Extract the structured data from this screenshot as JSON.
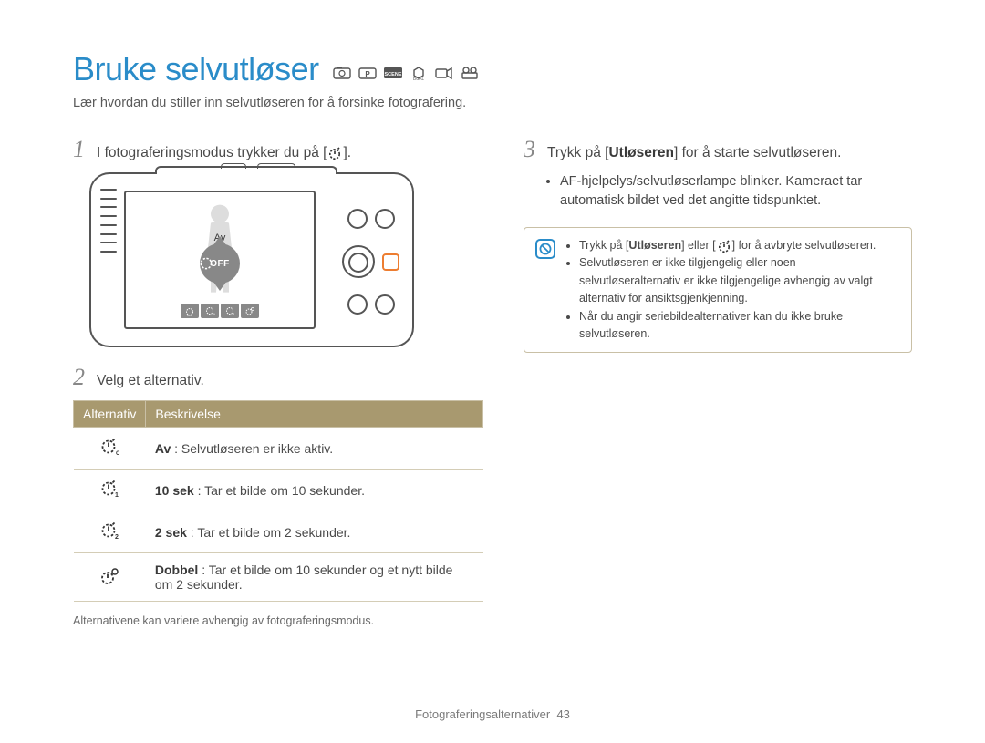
{
  "title": "Bruke selvutløser",
  "subtitle": "Lær hvordan du stiller inn selvutløseren for å forsinke fotografering.",
  "mode_icons": [
    "smart-auto-icon",
    "program-icon",
    "scene-icon",
    "dual-is-icon",
    "movie-icon",
    "smart-movie-icon"
  ],
  "steps": {
    "s1": {
      "num": "1",
      "text_a": "I fotograferingsmodus trykker du på [",
      "text_b": "]."
    },
    "s2": {
      "num": "2",
      "text": "Velg et alternativ."
    },
    "s3": {
      "num": "3",
      "text_a": "Trykk på [",
      "bold": "Utløseren",
      "text_b": "] for å starte selvutløseren."
    },
    "s3_bullet": "AF-hjelpelys/selvutløserlampe blinker. Kameraet tar automatisk bildet ved det angitte tidspunktet."
  },
  "camera": {
    "lcd_label": "Av",
    "dial_text": "OFF"
  },
  "table": {
    "header1": "Alternativ",
    "header2": "Beskrivelse",
    "rows": [
      {
        "icon": "timer-off-icon",
        "bold": "Av",
        "desc": " : Selvutløseren er ikke aktiv."
      },
      {
        "icon": "timer-10-icon",
        "bold": "10 sek",
        "desc": " : Tar et bilde om 10 sekunder."
      },
      {
        "icon": "timer-2-icon",
        "bold": "2 sek",
        "desc": " : Tar et bilde om 2 sekunder."
      },
      {
        "icon": "timer-double-icon",
        "bold": "Dobbel",
        "desc": " : Tar et bilde om 10 sekunder og et nytt bilde om 2 sekunder."
      }
    ]
  },
  "footnote": "Alternativene kan variere avhengig av fotograferingsmodus.",
  "note": {
    "items": [
      {
        "pre": "Trykk på [",
        "bold": "Utløseren",
        "mid": "] eller [",
        "post": "] for å avbryte selvutløseren.",
        "has_icon": true
      },
      {
        "text": "Selvutløseren er ikke tilgjengelig eller noen selvutløseralternativ er ikke tilgjengelige avhengig av valgt alternativ for ansiktsgjenkjenning."
      },
      {
        "text": "Når du angir seriebildealternativer kan du ikke bruke selvutløseren."
      }
    ]
  },
  "footer": {
    "text": "Fotograferingsalternativer",
    "page": "43"
  },
  "colors": {
    "title": "#2a8cc9",
    "table_header_bg": "#a8996f",
    "table_border": "#c9c0a6",
    "highlight": "#ed7d31"
  }
}
